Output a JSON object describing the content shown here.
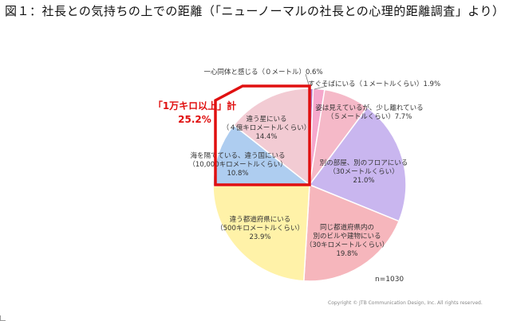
{
  "page": {
    "title": "図１：社長との気持ちの上での距離（「ニューノーマルの社長との心理的距離調査」より）",
    "sample": "n=1030",
    "copyright": "Copyright © JTB Communication Design, Inc. All rights reserved."
  },
  "chart_data": {
    "type": "pie",
    "title": "図１：社長との気持ちの上での距離（「ニューノーマルの社長との心理的距離調査」より）",
    "slices": [
      {
        "label_lines": [
          "一心同体と感じる（０メートル）0.6%"
        ],
        "value": 0.6,
        "color": "#b07ac8"
      },
      {
        "label_lines": [
          "すぐそばにいる（１メートルくらい）1.9%"
        ],
        "value": 1.9,
        "color": "#f5a8cc"
      },
      {
        "label_lines": [
          "姿は見えているが、少し離れている",
          "（５メートルくらい）7.7%"
        ],
        "value": 7.7,
        "color": "#f5b9c8"
      },
      {
        "label_lines": [
          "別の部屋、別のフロアにいる",
          "（30メートルくらい）",
          "21.0%"
        ],
        "value": 21.0,
        "color": "#c9b6ef"
      },
      {
        "label_lines": [
          "同じ都道府県内の",
          "別のビルや建物にいる",
          "（30キロメートルくらい）",
          "19.8%"
        ],
        "value": 19.8,
        "color": "#f6b6bc"
      },
      {
        "label_lines": [
          "違う都道府県にいる",
          "（500キロメートルくらい）",
          "23.9%"
        ],
        "value": 23.9,
        "color": "#fff2a8"
      },
      {
        "label_lines": [
          "海を隔てている、違う国にいる",
          "（10,000キロメートルくらい）",
          "10.8%"
        ],
        "value": 10.8,
        "color": "#aecdf0"
      },
      {
        "label_lines": [
          "違う星にいる",
          "（４億キロメートルくらい）",
          "14.4%"
        ],
        "value": 14.4,
        "color": "#f2cbd3"
      }
    ],
    "callout": {
      "lines": [
        "「1万キロ以上」計",
        "25.2%"
      ],
      "color": "#e01010"
    }
  }
}
